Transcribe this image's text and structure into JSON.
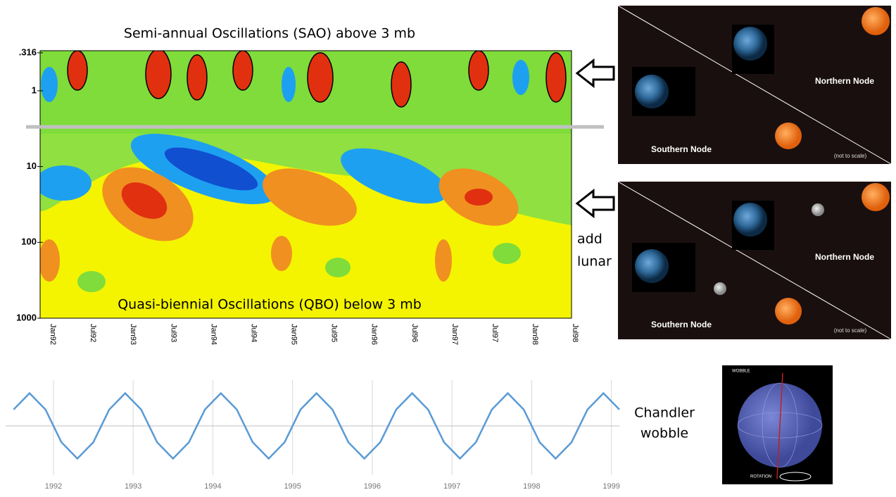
{
  "chart_data": [
    {
      "type": "contour",
      "title": "Semi-annual Oscillations (SAO) above 3 mb",
      "annotation": "Quasi-biennial Oscillations (QBO) below 3 mb",
      "categories": [
        "Jan92",
        "Jul92",
        "Jan93",
        "Jul93",
        "Jan94",
        "Jul94",
        "Jan95",
        "Jul95",
        "Jan96",
        "Jul96",
        "Jan97",
        "Jul97",
        "Jan98",
        "Jul98"
      ],
      "log": true,
      "y_reversed": true,
      "ylim": [
        0.316,
        1000
      ],
      "yticks": [
        {
          "value": 0.316,
          "label": ".316"
        },
        1,
        10,
        100,
        1000
      ],
      "reference_line": 3,
      "reference_color": "#c0c0c0"
    },
    {
      "type": "line",
      "color": "#5b9bd5",
      "x": [
        1991.5,
        1991.7,
        1991.9,
        1992.1,
        1992.3,
        1992.5,
        1992.7,
        1992.9,
        1993.1,
        1993.3,
        1993.5,
        1993.7,
        1993.9,
        1994.1,
        1994.3,
        1994.5,
        1994.7,
        1994.9,
        1995.1,
        1995.3,
        1995.5,
        1995.7,
        1995.9,
        1996.1,
        1996.3,
        1996.5,
        1996.7,
        1996.9,
        1997.1,
        1997.3,
        1997.5,
        1997.7,
        1997.9,
        1998.1,
        1998.3,
        1998.5,
        1998.7,
        1998.9,
        1999.1
      ],
      "values": [
        0.5,
        1,
        0.5,
        -0.5,
        -1,
        -0.5,
        0.5,
        1,
        0.5,
        -0.5,
        -1,
        -0.5,
        0.5,
        1,
        0.5,
        -0.5,
        -1,
        -0.5,
        0.5,
        1,
        0.5,
        -0.5,
        -1,
        -0.5,
        0.5,
        1,
        0.5,
        -0.5,
        -1,
        -0.5,
        0.5,
        1,
        0.5,
        -0.5,
        -1,
        -0.5,
        0.5,
        1,
        0.5
      ],
      "xlim": [
        1991.4,
        1999.1
      ],
      "xticks": [
        1992,
        1993,
        1994,
        1995,
        1996,
        1997,
        1998,
        1999
      ],
      "ylim": [
        -1.4,
        1.4
      ],
      "grid": true
    }
  ],
  "annotations": {
    "add_lunar": [
      "add",
      "lunar"
    ],
    "chandler": [
      "Chandler",
      "wobble"
    ]
  },
  "panels": [
    {
      "northern": "Northern Node",
      "southern": "Southern Node",
      "note": "(not to scale)"
    },
    {
      "northern": "Northern Node",
      "southern": "Southern Node",
      "note": "(not to scale)"
    }
  ],
  "globe": {
    "wobble": "WOBBLE",
    "rotation": "ROTATION"
  }
}
